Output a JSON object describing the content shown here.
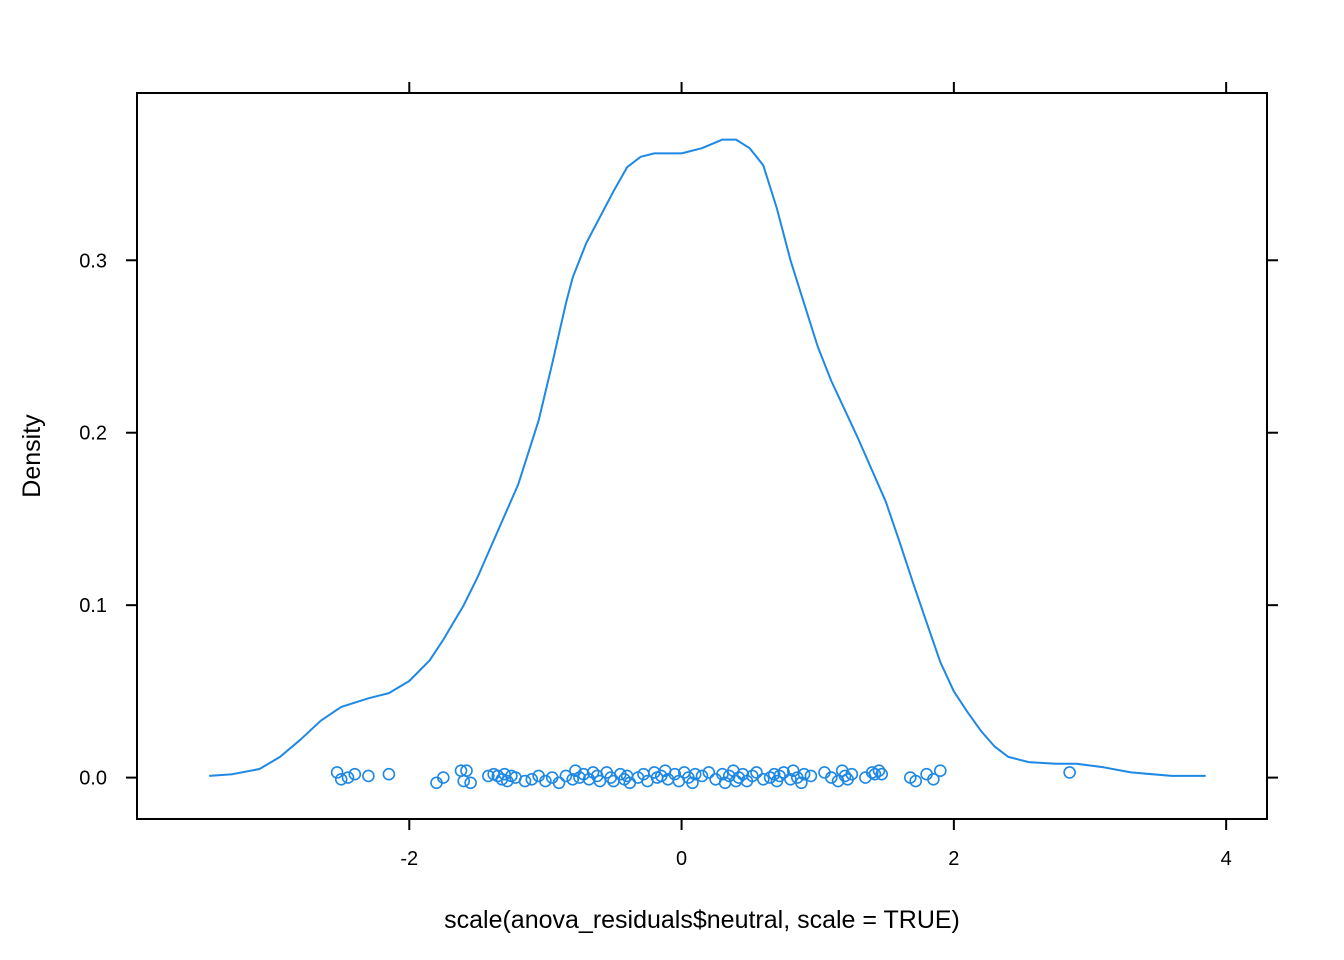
{
  "chart_data": {
    "type": "line",
    "xlabel": "scale(anova_residuals$neutral, scale = TRUE)",
    "ylabel": "Density",
    "xlim": [
      -4.0,
      4.3
    ],
    "ylim": [
      -0.024,
      0.397
    ],
    "x_ticks": [
      -2,
      0,
      2,
      4
    ],
    "x_tick_labels": [
      "-2",
      "0",
      "2",
      "4"
    ],
    "y_ticks": [
      0.0,
      0.1,
      0.2,
      0.3
    ],
    "y_tick_labels": [
      "0.0",
      "0.1",
      "0.2",
      "0.3"
    ],
    "grid": false,
    "series": [
      {
        "kind": "density-curve",
        "color": "#1e88e5",
        "points": [
          [
            -3.47,
            0.001
          ],
          [
            -3.3,
            0.002
          ],
          [
            -3.1,
            0.005
          ],
          [
            -2.95,
            0.012
          ],
          [
            -2.8,
            0.022
          ],
          [
            -2.65,
            0.033
          ],
          [
            -2.5,
            0.041
          ],
          [
            -2.3,
            0.046
          ],
          [
            -2.15,
            0.049
          ],
          [
            -2.0,
            0.056
          ],
          [
            -1.85,
            0.068
          ],
          [
            -1.75,
            0.08
          ],
          [
            -1.6,
            0.1
          ],
          [
            -1.5,
            0.116
          ],
          [
            -1.4,
            0.134
          ],
          [
            -1.2,
            0.17
          ],
          [
            -1.05,
            0.207
          ],
          [
            -0.95,
            0.24
          ],
          [
            -0.85,
            0.275
          ],
          [
            -0.8,
            0.29
          ],
          [
            -0.7,
            0.31
          ],
          [
            -0.5,
            0.34
          ],
          [
            -0.4,
            0.354
          ],
          [
            -0.3,
            0.36
          ],
          [
            -0.2,
            0.362
          ],
          [
            0.0,
            0.362
          ],
          [
            0.15,
            0.365
          ],
          [
            0.3,
            0.37
          ],
          [
            0.4,
            0.37
          ],
          [
            0.5,
            0.365
          ],
          [
            0.6,
            0.355
          ],
          [
            0.7,
            0.33
          ],
          [
            0.8,
            0.3
          ],
          [
            0.9,
            0.275
          ],
          [
            1.0,
            0.25
          ],
          [
            1.1,
            0.23
          ],
          [
            1.3,
            0.196
          ],
          [
            1.4,
            0.178
          ],
          [
            1.5,
            0.16
          ],
          [
            1.6,
            0.137
          ],
          [
            1.7,
            0.113
          ],
          [
            1.8,
            0.09
          ],
          [
            1.9,
            0.067
          ],
          [
            2.0,
            0.05
          ],
          [
            2.1,
            0.038
          ],
          [
            2.2,
            0.027
          ],
          [
            2.3,
            0.018
          ],
          [
            2.4,
            0.012
          ],
          [
            2.55,
            0.009
          ],
          [
            2.75,
            0.008
          ],
          [
            2.9,
            0.008
          ],
          [
            3.1,
            0.006
          ],
          [
            3.3,
            0.003
          ],
          [
            3.6,
            0.001
          ],
          [
            3.85,
            0.001
          ]
        ]
      },
      {
        "kind": "rug-points",
        "color": "#1e88e5",
        "points": [
          [
            -2.53,
            0.003
          ],
          [
            -2.5,
            -0.001
          ],
          [
            -2.45,
            0.0
          ],
          [
            -2.4,
            0.002
          ],
          [
            -2.3,
            0.001
          ],
          [
            -2.15,
            0.002
          ],
          [
            -1.8,
            -0.003
          ],
          [
            -1.75,
            0.0
          ],
          [
            -1.62,
            0.004
          ],
          [
            -1.6,
            -0.002
          ],
          [
            -1.58,
            0.004
          ],
          [
            -1.55,
            -0.003
          ],
          [
            -1.42,
            0.001
          ],
          [
            -1.38,
            0.002
          ],
          [
            -1.35,
            0.001
          ],
          [
            -1.32,
            -0.001
          ],
          [
            -1.3,
            0.002
          ],
          [
            -1.28,
            -0.002
          ],
          [
            -1.25,
            0.001
          ],
          [
            -1.22,
            0.0
          ],
          [
            -1.15,
            -0.002
          ],
          [
            -1.1,
            -0.001
          ],
          [
            -1.05,
            0.001
          ],
          [
            -1.0,
            -0.002
          ],
          [
            -0.95,
            0.0
          ],
          [
            -0.9,
            -0.003
          ],
          [
            -0.85,
            0.001
          ],
          [
            -0.8,
            -0.001
          ],
          [
            -0.78,
            0.004
          ],
          [
            -0.75,
            0.0
          ],
          [
            -0.72,
            0.002
          ],
          [
            -0.68,
            -0.001
          ],
          [
            -0.65,
            0.003
          ],
          [
            -0.62,
            0.001
          ],
          [
            -0.6,
            -0.002
          ],
          [
            -0.55,
            0.003
          ],
          [
            -0.52,
            0.0
          ],
          [
            -0.5,
            -0.002
          ],
          [
            -0.45,
            0.002
          ],
          [
            -0.42,
            -0.001
          ],
          [
            -0.4,
            0.001
          ],
          [
            -0.38,
            -0.003
          ],
          [
            -0.32,
            0.0
          ],
          [
            -0.28,
            0.002
          ],
          [
            -0.25,
            -0.002
          ],
          [
            -0.2,
            0.003
          ],
          [
            -0.18,
            0.0
          ],
          [
            -0.15,
            0.001
          ],
          [
            -0.12,
            0.004
          ],
          [
            -0.1,
            -0.001
          ],
          [
            -0.05,
            0.002
          ],
          [
            -0.02,
            -0.002
          ],
          [
            0.02,
            0.003
          ],
          [
            0.05,
            0.0
          ],
          [
            0.08,
            -0.003
          ],
          [
            0.1,
            0.002
          ],
          [
            0.15,
            0.001
          ],
          [
            0.2,
            0.003
          ],
          [
            0.25,
            -0.001
          ],
          [
            0.3,
            0.002
          ],
          [
            0.32,
            -0.003
          ],
          [
            0.35,
            0.001
          ],
          [
            0.38,
            0.004
          ],
          [
            0.4,
            -0.002
          ],
          [
            0.42,
            0.0
          ],
          [
            0.45,
            0.002
          ],
          [
            0.48,
            -0.002
          ],
          [
            0.52,
            0.001
          ],
          [
            0.55,
            0.003
          ],
          [
            0.6,
            -0.001
          ],
          [
            0.65,
            0.0
          ],
          [
            0.68,
            0.002
          ],
          [
            0.7,
            -0.002
          ],
          [
            0.72,
            0.001
          ],
          [
            0.75,
            0.003
          ],
          [
            0.8,
            -0.001
          ],
          [
            0.82,
            0.004
          ],
          [
            0.85,
            0.0
          ],
          [
            0.88,
            -0.003
          ],
          [
            0.9,
            0.002
          ],
          [
            0.95,
            0.001
          ],
          [
            1.05,
            0.003
          ],
          [
            1.1,
            0.0
          ],
          [
            1.15,
            -0.002
          ],
          [
            1.18,
            0.004
          ],
          [
            1.2,
            0.001
          ],
          [
            1.22,
            -0.001
          ],
          [
            1.25,
            0.002
          ],
          [
            1.35,
            0.0
          ],
          [
            1.4,
            0.003
          ],
          [
            1.42,
            0.002
          ],
          [
            1.45,
            0.004
          ],
          [
            1.47,
            0.002
          ],
          [
            1.68,
            0.0
          ],
          [
            1.72,
            -0.002
          ],
          [
            1.8,
            0.002
          ],
          [
            1.85,
            -0.001
          ],
          [
            1.9,
            0.004
          ],
          [
            2.85,
            0.003
          ]
        ]
      }
    ]
  }
}
